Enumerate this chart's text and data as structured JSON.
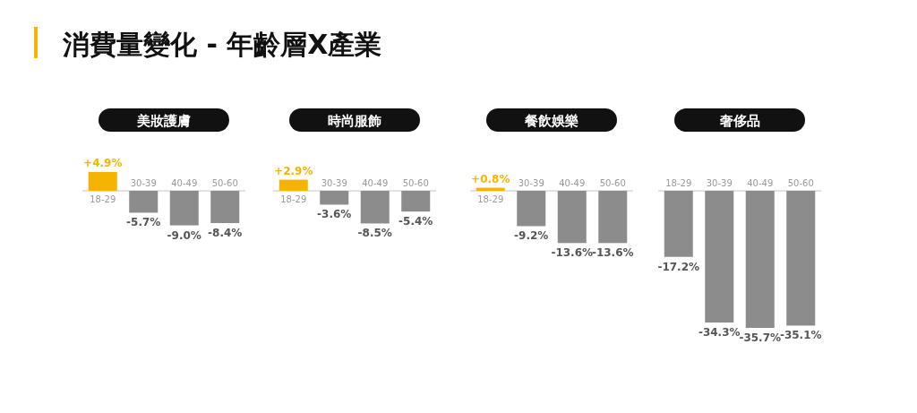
{
  "chart_data": [
    {
      "type": "bar",
      "title": "消費量變化 - 年齡層X產業",
      "subtitle": "美妝護膚",
      "categories": [
        "18-29",
        "30-39",
        "40-49",
        "50-60"
      ],
      "values": [
        4.9,
        -5.7,
        -9.0,
        -8.4
      ],
      "colors": [
        "#f5b400",
        "#8c8c8c",
        "#8c8c8c",
        "#8c8c8c"
      ],
      "value_labels": [
        "+4.9%",
        "-5.7%",
        "-9.0%",
        "-8.4%"
      ]
    },
    {
      "type": "bar",
      "subtitle": "時尚服飾",
      "categories": [
        "18-29",
        "30-39",
        "40-49",
        "50-60"
      ],
      "values": [
        2.9,
        -3.6,
        -8.5,
        -5.4
      ],
      "colors": [
        "#f5b400",
        "#8c8c8c",
        "#8c8c8c",
        "#8c8c8c"
      ],
      "value_labels": [
        "+2.9%",
        "-3.6%",
        "-8.5%",
        "-5.4%"
      ]
    },
    {
      "type": "bar",
      "subtitle": "餐飲娛樂",
      "categories": [
        "18-29",
        "30-39",
        "40-49",
        "50-60"
      ],
      "values": [
        0.8,
        -9.2,
        -13.6,
        -13.6
      ],
      "colors": [
        "#f5b400",
        "#8c8c8c",
        "#8c8c8c",
        "#8c8c8c"
      ],
      "value_labels": [
        "+0.8%",
        "-9.2%",
        "-13.6%",
        "-13.6%"
      ]
    },
    {
      "type": "bar",
      "subtitle": "奢侈品",
      "categories": [
        "18-29",
        "30-39",
        "40-49",
        "50-60"
      ],
      "values": [
        -17.2,
        -34.3,
        -35.7,
        -35.1
      ],
      "colors": [
        "#8c8c8c",
        "#8c8c8c",
        "#8c8c8c",
        "#8c8c8c"
      ],
      "value_labels": [
        "-17.2%",
        "-34.3%",
        "-35.7%",
        "-35.1%"
      ]
    }
  ]
}
